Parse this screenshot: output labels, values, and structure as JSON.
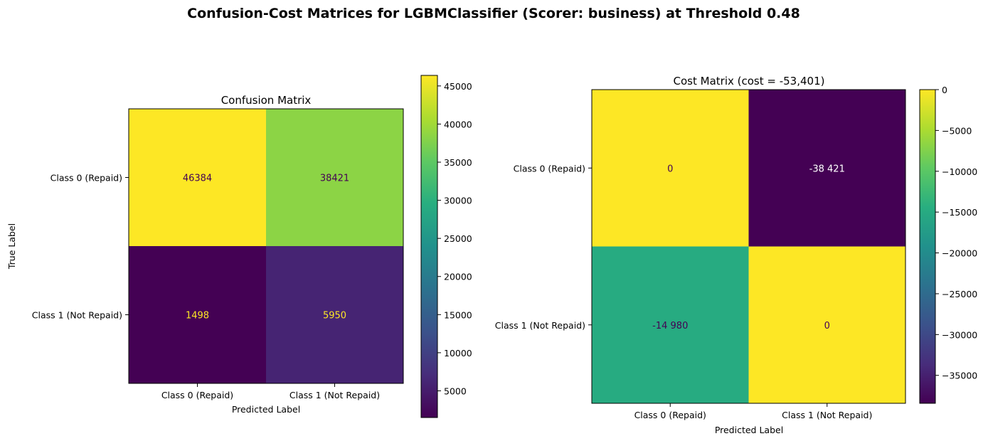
{
  "suptitle": "Confusion-Cost Matrices for LGBMClassifier (Scorer: business) at Threshold 0.48",
  "chart_data": [
    {
      "type": "heatmap",
      "title": "Confusion Matrix",
      "xlabel": "Predicted Label",
      "ylabel": "True Label",
      "x_categories": [
        "Class 0 (Repaid)",
        "Class 1 (Not Repaid)"
      ],
      "y_categories": [
        "Class 0 (Repaid)",
        "Class 1 (Not Repaid)"
      ],
      "values": [
        [
          46384,
          38421
        ],
        [
          1498,
          5950
        ]
      ],
      "cell_labels": [
        [
          "46384",
          "38421"
        ],
        [
          "1498",
          "5950"
        ]
      ],
      "colormap": "viridis",
      "colorbar": {
        "range": [
          1498,
          46384
        ],
        "ticks": [
          5000,
          10000,
          15000,
          20000,
          25000,
          30000,
          35000,
          40000,
          45000
        ],
        "tick_labels": [
          "5000",
          "10000",
          "15000",
          "20000",
          "25000",
          "30000",
          "35000",
          "40000",
          "45000"
        ]
      }
    },
    {
      "type": "heatmap",
      "title": "Cost Matrix (cost = -53,401)",
      "xlabel": "Predicted Label",
      "ylabel": "",
      "x_categories": [
        "Class 0 (Repaid)",
        "Class 1 (Not Repaid)"
      ],
      "y_categories": [
        "Class 0 (Repaid)",
        "Class 1 (Not Repaid)"
      ],
      "values": [
        [
          0,
          -38421
        ],
        [
          -14980,
          0
        ]
      ],
      "cell_labels": [
        [
          "0",
          "-38 421"
        ],
        [
          "-14 980",
          "0"
        ]
      ],
      "colormap": "viridis",
      "colorbar": {
        "range": [
          -38421,
          0
        ],
        "ticks": [
          0,
          -5000,
          -10000,
          -15000,
          -20000,
          -25000,
          -30000,
          -35000
        ],
        "tick_labels": [
          "0",
          "−5000",
          "−10000",
          "−15000",
          "−20000",
          "−25000",
          "−30000",
          "−35000"
        ]
      }
    }
  ]
}
